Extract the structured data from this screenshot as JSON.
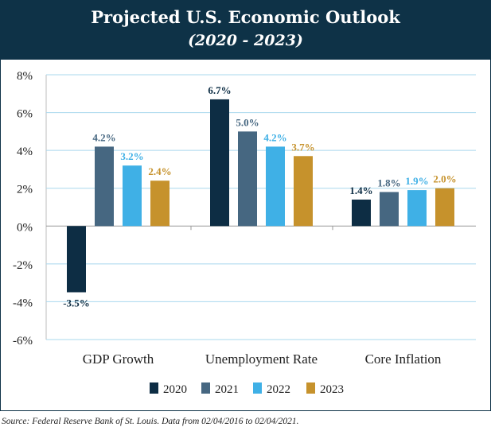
{
  "header": {
    "title": "Projected U.S. Economic Outlook",
    "subtitle": "(2020 - 2023)"
  },
  "source": "Source: Federal Reserve Bank of St. Louis. Data from 02/04/2016 to 02/04/2021.",
  "chart_data": {
    "type": "bar",
    "title": "Projected U.S. Economic Outlook",
    "subtitle": "(2020 - 2023)",
    "categories": [
      "GDP Growth",
      "Unemployment Rate",
      "Core Inflation"
    ],
    "series": [
      {
        "name": "2020",
        "color": "#0d2d44",
        "values": [
          -3.5,
          6.7,
          1.4
        ],
        "labels": [
          "-3.5%",
          "6.7%",
          "1.4%"
        ]
      },
      {
        "name": "2021",
        "color": "#466781",
        "values": [
          4.2,
          5.0,
          1.8
        ],
        "labels": [
          "4.2%",
          "5.0%",
          "1.8%"
        ]
      },
      {
        "name": "2022",
        "color": "#3fb0e6",
        "values": [
          3.2,
          4.2,
          1.9
        ],
        "labels": [
          "3.2%",
          "4.2%",
          "1.9%"
        ]
      },
      {
        "name": "2023",
        "color": "#c6922c",
        "values": [
          2.4,
          3.7,
          2.0
        ],
        "labels": [
          "2.4%",
          "3.7%",
          "2.0%"
        ]
      }
    ],
    "ylim": [
      -6,
      8
    ],
    "yticks": [
      8,
      6,
      4,
      2,
      0,
      -2,
      -4,
      -6
    ],
    "ytick_labels": [
      "8%",
      "6%",
      "4%",
      "2%",
      "0%",
      "-2%",
      "-4%",
      "-6%"
    ],
    "grid": true,
    "legend": "bottom",
    "xlabel": "",
    "ylabel": ""
  }
}
